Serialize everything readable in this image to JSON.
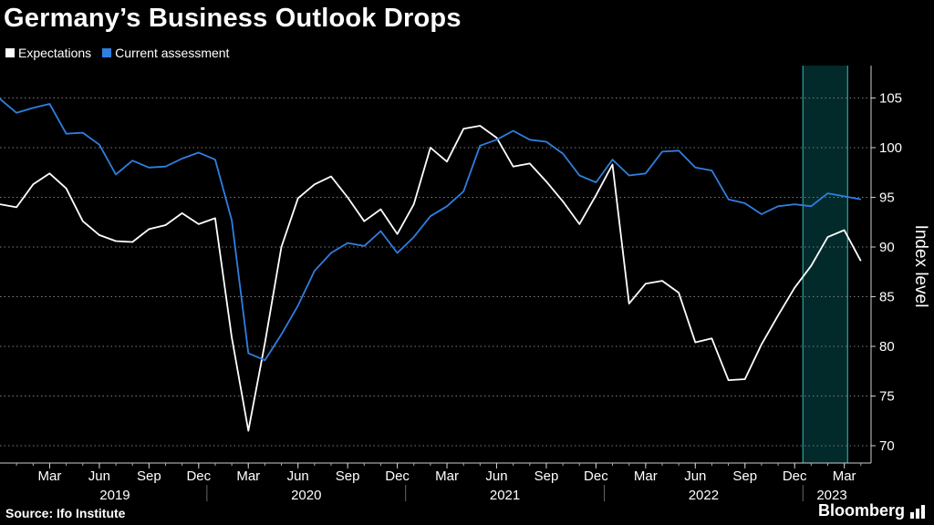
{
  "header": {
    "title": "Germany’s Business Outlook Drops"
  },
  "footer": {
    "source": "Source: Ifo Institute",
    "brand": "Bloomberg"
  },
  "colors": {
    "background": "#000000",
    "expectations": "#ffffff",
    "current": "#2f7fe0",
    "highlight_fill": "#032a2a",
    "highlight_edge": "#2aa6a6",
    "grid": "#7a7a7a"
  },
  "chart_data": {
    "type": "line",
    "title": "Germany’s Business Outlook Drops",
    "xlabel": "",
    "ylabel": "Index level",
    "ylim": [
      68,
      108
    ],
    "yticks": [
      70,
      75,
      80,
      85,
      90,
      95,
      100,
      105
    ],
    "grid": "horizontal dotted",
    "legend_position": "top-left",
    "x_start": "2019-01",
    "x_end": "2023-04",
    "month_ticks": [
      {
        "label": "Mar",
        "month": 2
      },
      {
        "label": "Jun",
        "month": 5
      },
      {
        "label": "Sep",
        "month": 8
      },
      {
        "label": "Dec",
        "month": 11
      },
      {
        "label": "Mar",
        "month": 14
      },
      {
        "label": "Jun",
        "month": 17
      },
      {
        "label": "Sep",
        "month": 20
      },
      {
        "label": "Dec",
        "month": 23
      },
      {
        "label": "Mar",
        "month": 26
      },
      {
        "label": "Jun",
        "month": 29
      },
      {
        "label": "Sep",
        "month": 32
      },
      {
        "label": "Dec",
        "month": 35
      },
      {
        "label": "Mar",
        "month": 38
      },
      {
        "label": "Jun",
        "month": 41
      },
      {
        "label": "Sep",
        "month": 44
      },
      {
        "label": "Dec",
        "month": 47
      },
      {
        "label": "Mar",
        "month": 50
      }
    ],
    "years": [
      {
        "label": "2019",
        "start": 0,
        "end": 12
      },
      {
        "label": "2020",
        "start": 12,
        "end": 24
      },
      {
        "label": "2021",
        "start": 24,
        "end": 36
      },
      {
        "label": "2022",
        "start": 36,
        "end": 48
      },
      {
        "label": "2023",
        "start": 48,
        "end": 52
      }
    ],
    "highlight": {
      "from": 47.5,
      "to": 50.2
    },
    "series": [
      {
        "name": "Expectations",
        "color": "#ffffff",
        "start_month": -1,
        "values": [
          94.3,
          94.0,
          96.3,
          97.4,
          95.9,
          92.6,
          91.2,
          90.6,
          90.5,
          91.8,
          92.2,
          93.4,
          92.3,
          92.9,
          80.9,
          71.5,
          80.3,
          90.0,
          94.9,
          96.3,
          97.1,
          95.0,
          92.6,
          93.8,
          91.3,
          94.3,
          100.0,
          98.6,
          101.9,
          102.2,
          101.0,
          98.1,
          98.4,
          96.6,
          94.6,
          92.3,
          95.2,
          98.3,
          84.3,
          86.3,
          86.6,
          85.4,
          80.4,
          80.8,
          76.6,
          76.7,
          80.2,
          83.1,
          85.9,
          88.1,
          91.0,
          91.7,
          88.6
        ]
      },
      {
        "name": "Current assessment",
        "color": "#2f7fe0",
        "start_month": -1,
        "values": [
          104.9,
          103.5,
          104.0,
          104.4,
          101.4,
          101.5,
          100.3,
          97.3,
          98.7,
          98.0,
          98.1,
          98.9,
          99.5,
          98.8,
          92.7,
          79.3,
          78.6,
          81.2,
          84.1,
          87.6,
          89.4,
          90.4,
          90.1,
          91.6,
          89.4,
          91.0,
          93.1,
          94.1,
          95.6,
          100.2,
          100.8,
          101.7,
          100.8,
          100.6,
          99.4,
          97.2,
          96.5,
          98.8,
          97.2,
          97.4,
          99.6,
          99.7,
          98.0,
          97.7,
          94.8,
          94.4,
          93.3,
          94.1,
          94.3,
          94.1,
          95.4,
          95.1,
          94.8
        ]
      }
    ]
  }
}
